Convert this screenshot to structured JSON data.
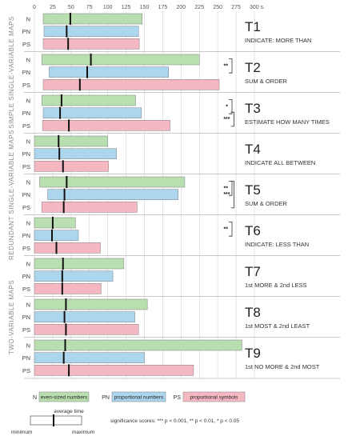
{
  "chart_data": {
    "type": "bar",
    "unit_label": "300 s.",
    "x_ticks": [
      0,
      25,
      50,
      75,
      100,
      125,
      150,
      175,
      200,
      225,
      250,
      275
    ],
    "xlim": [
      0,
      300
    ],
    "series": [
      {
        "key": "N",
        "name": "even-sized numbers",
        "color": "#b9dfb0"
      },
      {
        "key": "PN",
        "name": "proportional numbers",
        "color": "#acd6ee"
      },
      {
        "key": "PS",
        "name": "proportional symbols",
        "color": "#f5b8c3"
      }
    ],
    "sections": [
      {
        "label": "SIMPLE SINGLE-VARIABLE MAPS"
      },
      {
        "label": "REDUNDANT SINGLE-VARIABLE MAPS"
      },
      {
        "label": "TWO-VARIABLE MAPS"
      }
    ],
    "tasks": [
      {
        "id": "T1",
        "section": 0,
        "subtitle": "INDICATE: MORE THAN",
        "bars": [
          {
            "s": "N",
            "min": 12,
            "max": 147,
            "avg": 49
          },
          {
            "s": "PN",
            "min": 13,
            "max": 142,
            "avg": 44
          },
          {
            "s": "PS",
            "min": 12,
            "max": 143,
            "avg": 46
          }
        ],
        "sig": []
      },
      {
        "id": "T2",
        "section": 0,
        "subtitle": "SUM & ORDER",
        "bars": [
          {
            "s": "N",
            "min": 10,
            "max": 225,
            "avg": 77
          },
          {
            "s": "PN",
            "min": 20,
            "max": 183,
            "avg": 72
          },
          {
            "s": "PS",
            "min": 12,
            "max": 252,
            "avg": 62
          }
        ],
        "sig": [
          {
            "rows": [
              0,
              1
            ],
            "label": "**"
          }
        ]
      },
      {
        "id": "T3",
        "section": 0,
        "subtitle": "ESTIMATE HOW MANY TIMES",
        "bars": [
          {
            "s": "N",
            "min": 10,
            "max": 138,
            "avg": 37
          },
          {
            "s": "PN",
            "min": 12,
            "max": 146,
            "avg": 35
          },
          {
            "s": "PS",
            "min": 11,
            "max": 185,
            "avg": 47
          }
        ],
        "sig": [
          {
            "rows": [
              0,
              1
            ],
            "label": "*"
          },
          {
            "rows": [
              1,
              2
            ],
            "label": "***"
          }
        ]
      },
      {
        "id": "T4",
        "section": 1,
        "subtitle": "INDICATE ALL BETWEEN",
        "bars": [
          {
            "s": "N",
            "min": 0,
            "max": 100,
            "avg": 33
          },
          {
            "s": "PN",
            "min": 0,
            "max": 112,
            "avg": 34
          },
          {
            "s": "PS",
            "min": 0,
            "max": 101,
            "avg": 39
          }
        ],
        "sig": []
      },
      {
        "id": "T5",
        "section": 1,
        "subtitle": "SUM & ORDER",
        "bars": [
          {
            "s": "N",
            "min": 7,
            "max": 205,
            "avg": 44
          },
          {
            "s": "PN",
            "min": 18,
            "max": 196,
            "avg": 41
          },
          {
            "s": "PS",
            "min": 10,
            "max": 140,
            "avg": 40
          }
        ],
        "sig": [
          {
            "rows": [
              0,
              1
            ],
            "label": "**"
          },
          {
            "rows": [
              0,
              2
            ],
            "label": "***"
          }
        ]
      },
      {
        "id": "T6",
        "section": 1,
        "subtitle": "INDICATE: LESS THAN",
        "bars": [
          {
            "s": "N",
            "min": 0,
            "max": 56,
            "avg": 25
          },
          {
            "s": "PN",
            "min": 0,
            "max": 60,
            "avg": 24
          },
          {
            "s": "PS",
            "min": 0,
            "max": 90,
            "avg": 30
          }
        ],
        "sig": [
          {
            "rows": [
              0,
              1
            ],
            "label": "**"
          }
        ]
      },
      {
        "id": "T7",
        "section": 2,
        "subtitle": "1st MORE & 2nd LESS",
        "bars": [
          {
            "s": "N",
            "min": 0,
            "max": 122,
            "avg": 39
          },
          {
            "s": "PN",
            "min": 0,
            "max": 107,
            "avg": 38
          },
          {
            "s": "PS",
            "min": 0,
            "max": 91,
            "avg": 38
          }
        ],
        "sig": []
      },
      {
        "id": "T8",
        "section": 2,
        "subtitle": "1st MOST & 2nd LEAST",
        "bars": [
          {
            "s": "N",
            "min": 0,
            "max": 154,
            "avg": 43
          },
          {
            "s": "PN",
            "min": 0,
            "max": 137,
            "avg": 41
          },
          {
            "s": "PS",
            "min": 0,
            "max": 142,
            "avg": 43
          }
        ],
        "sig": []
      },
      {
        "id": "T9",
        "section": 2,
        "subtitle": "1st NO MORE & 2nd MOST",
        "bars": [
          {
            "s": "N",
            "min": 0,
            "max": 283,
            "avg": 42
          },
          {
            "s": "PN",
            "min": 0,
            "max": 150,
            "avg": 40
          },
          {
            "s": "PS",
            "min": 0,
            "max": 217,
            "avg": 47
          }
        ],
        "sig": []
      }
    ],
    "legend_caption": {
      "avg": "average time",
      "min": "minimum",
      "max": "maximum"
    },
    "significance_note": "significance scores: *** p < 0.001, ** p < 0.01, * p < 0.05"
  }
}
